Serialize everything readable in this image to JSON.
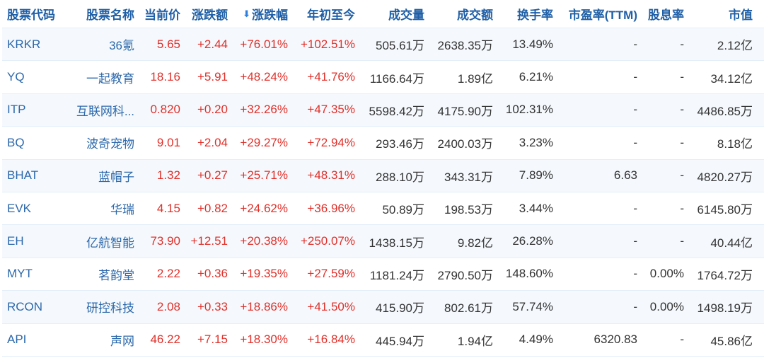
{
  "colors": {
    "header": "#1f5fa6",
    "link": "#2c68aa",
    "up": "#e0302a",
    "text": "#333333",
    "stripe": "#f5f9fd"
  },
  "sort": {
    "column": "涨跌幅",
    "direction": "desc",
    "icon": "arrow-down-icon"
  },
  "headers": [
    "股票代码",
    "股票名称",
    "当前价",
    "涨跌额",
    "涨跌幅",
    "年初至今",
    "成交量",
    "成交额",
    "换手率",
    "市盈率(TTM)",
    "股息率",
    "市值"
  ],
  "rows": [
    [
      "KRKR",
      "36氪",
      "5.65",
      "+2.44",
      "+76.01%",
      "+102.51%",
      "505.61万",
      "2638.35万",
      "13.49%",
      "-",
      "-",
      "2.12亿"
    ],
    [
      "YQ",
      "一起教育",
      "18.16",
      "+5.91",
      "+48.24%",
      "+41.76%",
      "1166.64万",
      "1.89亿",
      "6.21%",
      "-",
      "-",
      "34.12亿"
    ],
    [
      "ITP",
      "互联网科...",
      "0.820",
      "+0.20",
      "+32.26%",
      "+47.35%",
      "5598.42万",
      "4175.90万",
      "102.31%",
      "-",
      "-",
      "4486.85万"
    ],
    [
      "BQ",
      "波奇宠物",
      "9.01",
      "+2.04",
      "+29.27%",
      "+72.94%",
      "293.46万",
      "2400.03万",
      "3.23%",
      "-",
      "-",
      "8.18亿"
    ],
    [
      "BHAT",
      "蓝帽子",
      "1.32",
      "+0.27",
      "+25.71%",
      "+48.31%",
      "288.10万",
      "343.31万",
      "7.89%",
      "6.63",
      "-",
      "4820.27万"
    ],
    [
      "EVK",
      "华瑞",
      "4.15",
      "+0.82",
      "+24.62%",
      "+36.96%",
      "50.89万",
      "198.53万",
      "3.44%",
      "-",
      "-",
      "6145.80万"
    ],
    [
      "EH",
      "亿航智能",
      "73.90",
      "+12.51",
      "+20.38%",
      "+250.07%",
      "1438.15万",
      "9.82亿",
      "26.28%",
      "-",
      "-",
      "40.44亿"
    ],
    [
      "MYT",
      "茗韵堂",
      "2.22",
      "+0.36",
      "+19.35%",
      "+27.59%",
      "1181.24万",
      "2790.50万",
      "148.60%",
      "-",
      "0.00%",
      "1764.72万"
    ],
    [
      "RCON",
      "研控科技",
      "2.08",
      "+0.33",
      "+18.86%",
      "+41.50%",
      "415.90万",
      "802.61万",
      "57.74%",
      "-",
      "0.00%",
      "1498.19万"
    ],
    [
      "API",
      "声网",
      "46.22",
      "+7.15",
      "+18.30%",
      "+16.84%",
      "445.94万",
      "1.94亿",
      "4.49%",
      "6320.83",
      "-",
      "45.86亿"
    ]
  ]
}
